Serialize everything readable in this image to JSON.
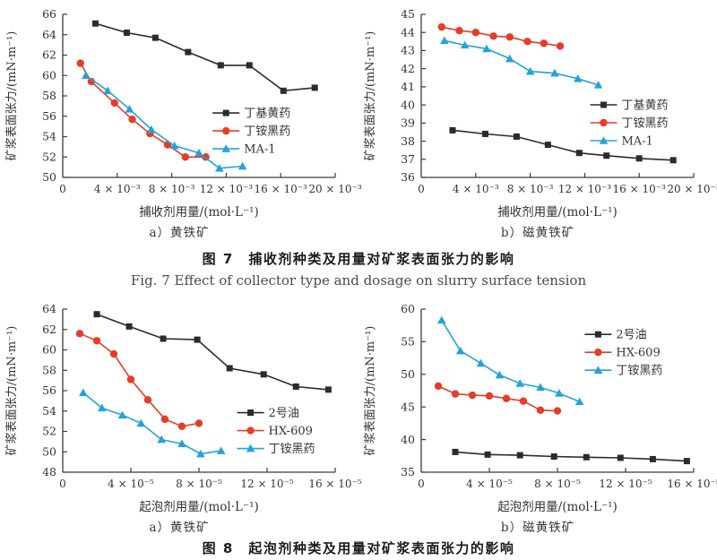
{
  "figure7": {
    "caption_zh": "图 7　捕收剂种类及用量对矿浆表面张力的影响",
    "caption_en": "Fig. 7   Effect of collector type and dosage on slurry surface tension"
  },
  "figure8": {
    "caption_zh": "图 8　起泡剂种类及用量对矿浆表面张力的影响"
  },
  "colors": {
    "black": "#2b2b2b",
    "red": "#e63c28",
    "blue": "#25a2d9",
    "axis": "#3c3c3c"
  },
  "chart_data": [
    {
      "id": "fig7a",
      "type": "line",
      "subcaption": "a）黄铁矿",
      "xlabel": "捕收剂用量/(mol·L⁻¹)",
      "ylabel": "矿浆表面张力/(mN·m⁻¹)",
      "xlim": [
        0,
        20
      ],
      "ylim": [
        50,
        66
      ],
      "yticks": [
        50,
        52,
        54,
        56,
        58,
        60,
        62,
        64,
        66
      ],
      "xticks": [
        {
          "v": 0,
          "label": "0"
        },
        {
          "v": 4,
          "label": "4 × 10⁻³"
        },
        {
          "v": 8,
          "label": "8 × 10⁻³"
        },
        {
          "v": 12,
          "label": "12 × 10⁻³"
        },
        {
          "v": 16,
          "label": "16 × 10⁻³"
        },
        {
          "v": 20,
          "label": "20 × 10⁻³"
        }
      ],
      "legend": {
        "fx": 0.55,
        "fy": 0.55
      },
      "series": [
        {
          "name": "丁基黄药",
          "color": "#2b2b2b",
          "marker": "square",
          "points": [
            [
              2.4,
              65.1
            ],
            [
              4.7,
              64.2
            ],
            [
              6.8,
              63.7
            ],
            [
              9.2,
              62.3
            ],
            [
              11.6,
              61.0
            ],
            [
              13.7,
              61.0
            ],
            [
              16.2,
              58.5
            ],
            [
              18.5,
              58.8
            ]
          ]
        },
        {
          "name": "丁铵黑药",
          "color": "#e63c28",
          "marker": "circle",
          "points": [
            [
              1.3,
              61.2
            ],
            [
              2.1,
              59.4
            ],
            [
              3.8,
              57.3
            ],
            [
              5.1,
              55.7
            ],
            [
              6.4,
              54.3
            ],
            [
              7.7,
              53.2
            ],
            [
              9.0,
              52.0
            ],
            [
              10.5,
              52.0
            ]
          ]
        },
        {
          "name": "MA-1",
          "color": "#25a2d9",
          "marker": "triangle",
          "points": [
            [
              1.7,
              60.0
            ],
            [
              3.3,
              58.5
            ],
            [
              4.9,
              56.7
            ],
            [
              6.5,
              54.7
            ],
            [
              8.2,
              53.1
            ],
            [
              10.0,
              52.4
            ],
            [
              11.5,
              50.9
            ],
            [
              13.2,
              51.1
            ]
          ]
        }
      ]
    },
    {
      "id": "fig7b",
      "type": "line",
      "subcaption": "b）磁黄铁矿",
      "xlabel": "捕收剂用量/(mol·L⁻¹)",
      "ylabel": "矿浆表面张力/(mN·m⁻¹)",
      "xlim": [
        0,
        20
      ],
      "ylim": [
        36,
        45
      ],
      "yticks": [
        36,
        37,
        38,
        39,
        40,
        41,
        42,
        43,
        44,
        45
      ],
      "xticks": [
        {
          "v": 0,
          "label": "0"
        },
        {
          "v": 4,
          "label": "4 × 10⁻³"
        },
        {
          "v": 8,
          "label": "8 × 10⁻³"
        },
        {
          "v": 12,
          "label": "12 × 10⁻³"
        },
        {
          "v": 16,
          "label": "16 × 10⁻³"
        },
        {
          "v": 20,
          "label": "20 × 10⁻³"
        }
      ],
      "legend": {
        "fx": 0.62,
        "fy": 0.5
      },
      "series": [
        {
          "name": "丁基黄药",
          "color": "#2b2b2b",
          "marker": "square",
          "points": [
            [
              2.3,
              38.6
            ],
            [
              4.7,
              38.4
            ],
            [
              7.0,
              38.25
            ],
            [
              9.3,
              37.8
            ],
            [
              11.6,
              37.35
            ],
            [
              13.6,
              37.2
            ],
            [
              16.0,
              37.05
            ],
            [
              18.5,
              36.95
            ]
          ]
        },
        {
          "name": "丁铵黑药",
          "color": "#e63c28",
          "marker": "circle",
          "points": [
            [
              1.5,
              44.3
            ],
            [
              2.8,
              44.1
            ],
            [
              4.0,
              44.0
            ],
            [
              5.3,
              43.8
            ],
            [
              6.5,
              43.75
            ],
            [
              7.8,
              43.5
            ],
            [
              9.0,
              43.4
            ],
            [
              10.2,
              43.25
            ]
          ]
        },
        {
          "name": "MA-1",
          "color": "#25a2d9",
          "marker": "triangle",
          "points": [
            [
              1.7,
              43.55
            ],
            [
              3.2,
              43.3
            ],
            [
              4.8,
              43.1
            ],
            [
              6.5,
              42.55
            ],
            [
              8.0,
              41.85
            ],
            [
              9.8,
              41.75
            ],
            [
              11.5,
              41.45
            ],
            [
              13.0,
              41.1
            ]
          ]
        }
      ]
    },
    {
      "id": "fig8a",
      "type": "line",
      "subcaption": "a）黄铁矿",
      "xlabel": "起泡剂用量/(mol·L⁻¹)",
      "ylabel": "矿浆表面张力/(mN·m⁻¹)",
      "xlim": [
        0,
        16
      ],
      "ylim": [
        48,
        64
      ],
      "yticks": [
        48,
        50,
        52,
        54,
        56,
        58,
        60,
        62,
        64
      ],
      "xticks": [
        {
          "v": 0,
          "label": "0"
        },
        {
          "v": 4,
          "label": "4 × 10⁻⁵"
        },
        {
          "v": 8,
          "label": "8 × 10⁻⁵"
        },
        {
          "v": 12,
          "label": "12 × 10⁻⁵"
        },
        {
          "v": 16,
          "label": "16 × 10⁻⁵"
        }
      ],
      "legend": {
        "fx": 0.64,
        "fy": 0.58
      },
      "series": [
        {
          "name": "2号油",
          "color": "#2b2b2b",
          "marker": "square",
          "points": [
            [
              2.0,
              63.5
            ],
            [
              3.9,
              62.3
            ],
            [
              5.9,
              61.1
            ],
            [
              7.9,
              61.0
            ],
            [
              9.8,
              58.2
            ],
            [
              11.8,
              57.6
            ],
            [
              13.7,
              56.4
            ],
            [
              15.6,
              56.1
            ]
          ]
        },
        {
          "name": "HX-609",
          "color": "#e63c28",
          "marker": "circle",
          "points": [
            [
              1.0,
              61.6
            ],
            [
              2.0,
              60.9
            ],
            [
              3.0,
              59.6
            ],
            [
              4.0,
              57.1
            ],
            [
              5.0,
              55.1
            ],
            [
              6.0,
              53.2
            ],
            [
              7.0,
              52.5
            ],
            [
              8.0,
              52.8
            ]
          ]
        },
        {
          "name": "丁铵黑药",
          "color": "#25a2d9",
          "marker": "triangle",
          "points": [
            [
              1.2,
              55.8
            ],
            [
              2.3,
              54.3
            ],
            [
              3.5,
              53.6
            ],
            [
              4.6,
              52.8
            ],
            [
              5.8,
              51.2
            ],
            [
              7.0,
              50.8
            ],
            [
              8.1,
              49.8
            ],
            [
              9.3,
              50.1
            ]
          ]
        }
      ]
    },
    {
      "id": "fig8b",
      "type": "line",
      "subcaption": "b）磁黄铁矿",
      "xlabel": "起泡剂用量/(mol·L⁻¹)",
      "ylabel": "矿浆表面张力/(mN·m⁻¹)",
      "xlim": [
        0,
        16
      ],
      "ylim": [
        35,
        60
      ],
      "yticks": [
        35,
        40,
        45,
        50,
        55,
        60
      ],
      "xticks": [
        {
          "v": 0,
          "label": "0"
        },
        {
          "v": 4,
          "label": "4 × 10⁻⁵"
        },
        {
          "v": 8,
          "label": "8 × 10⁻⁵"
        },
        {
          "v": 12,
          "label": "12 × 10⁻⁵"
        },
        {
          "v": 16,
          "label": "16 × 10⁻⁵"
        }
      ],
      "legend": {
        "fx": 0.6,
        "fy": 0.1
      },
      "series": [
        {
          "name": "2号油",
          "color": "#2b2b2b",
          "marker": "square",
          "points": [
            [
              2.0,
              38.1
            ],
            [
              3.9,
              37.7
            ],
            [
              5.8,
              37.6
            ],
            [
              7.8,
              37.4
            ],
            [
              9.7,
              37.3
            ],
            [
              11.7,
              37.2
            ],
            [
              13.6,
              37.0
            ],
            [
              15.6,
              36.7
            ]
          ]
        },
        {
          "name": "HX-609",
          "color": "#e63c28",
          "marker": "circle",
          "points": [
            [
              1.0,
              48.2
            ],
            [
              2.0,
              47.0
            ],
            [
              3.0,
              46.8
            ],
            [
              4.0,
              46.7
            ],
            [
              5.0,
              46.3
            ],
            [
              6.0,
              45.9
            ],
            [
              7.0,
              44.5
            ],
            [
              8.0,
              44.4
            ]
          ]
        },
        {
          "name": "丁铵黑药",
          "color": "#25a2d9",
          "marker": "triangle",
          "points": [
            [
              1.2,
              58.3
            ],
            [
              2.3,
              53.6
            ],
            [
              3.5,
              51.7
            ],
            [
              4.6,
              49.9
            ],
            [
              5.8,
              48.6
            ],
            [
              7.0,
              48.0
            ],
            [
              8.1,
              47.1
            ],
            [
              9.3,
              45.8
            ]
          ]
        }
      ]
    }
  ]
}
